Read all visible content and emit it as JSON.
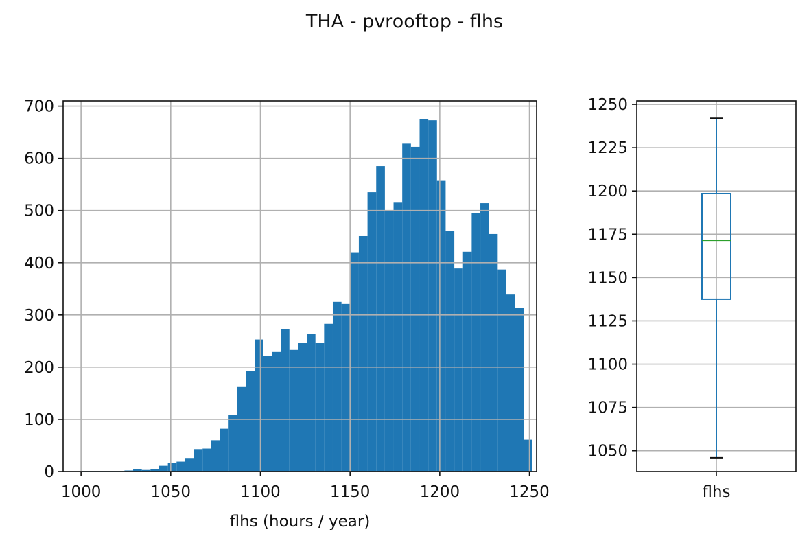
{
  "figure": {
    "title": "THA - pvrooftop - flhs"
  },
  "chart_data": [
    {
      "type": "bar",
      "subtype": "histogram",
      "xlabel": "flhs (hours / year)",
      "ylabel": "",
      "xlim": [
        990,
        1254
      ],
      "ylim": [
        0,
        710
      ],
      "xticks": [
        1000,
        1050,
        1100,
        1150,
        1200,
        1250
      ],
      "yticks": [
        0,
        100,
        200,
        300,
        400,
        500,
        600,
        700
      ],
      "grid": true,
      "color": "#1f77b4",
      "bins": {
        "start": 1000,
        "width": 4.84,
        "counts": [
          1,
          1,
          1,
          1,
          1,
          2,
          4,
          3,
          5,
          11,
          16,
          19,
          26,
          43,
          44,
          60,
          82,
          108,
          162,
          192,
          253,
          221,
          229,
          273,
          233,
          247,
          263,
          247,
          283,
          325,
          321,
          420,
          451,
          535,
          585,
          500,
          515,
          628,
          622,
          675,
          673,
          558,
          461,
          389,
          421,
          495,
          514,
          455,
          387,
          339,
          313,
          61
        ]
      }
    },
    {
      "type": "box",
      "categories": [
        "flhs"
      ],
      "ylim": [
        1038,
        1252
      ],
      "yticks": [
        1050,
        1075,
        1100,
        1125,
        1150,
        1175,
        1200,
        1225,
        1250
      ],
      "grid": true,
      "box": {
        "whisker_low": 1046,
        "q1": 1137.5,
        "median": 1171.5,
        "q3": 1198.5,
        "whisker_high": 1242
      },
      "colors": {
        "box": "#1f77b4",
        "median": "#2ca02c",
        "cap": "#111111"
      }
    }
  ]
}
